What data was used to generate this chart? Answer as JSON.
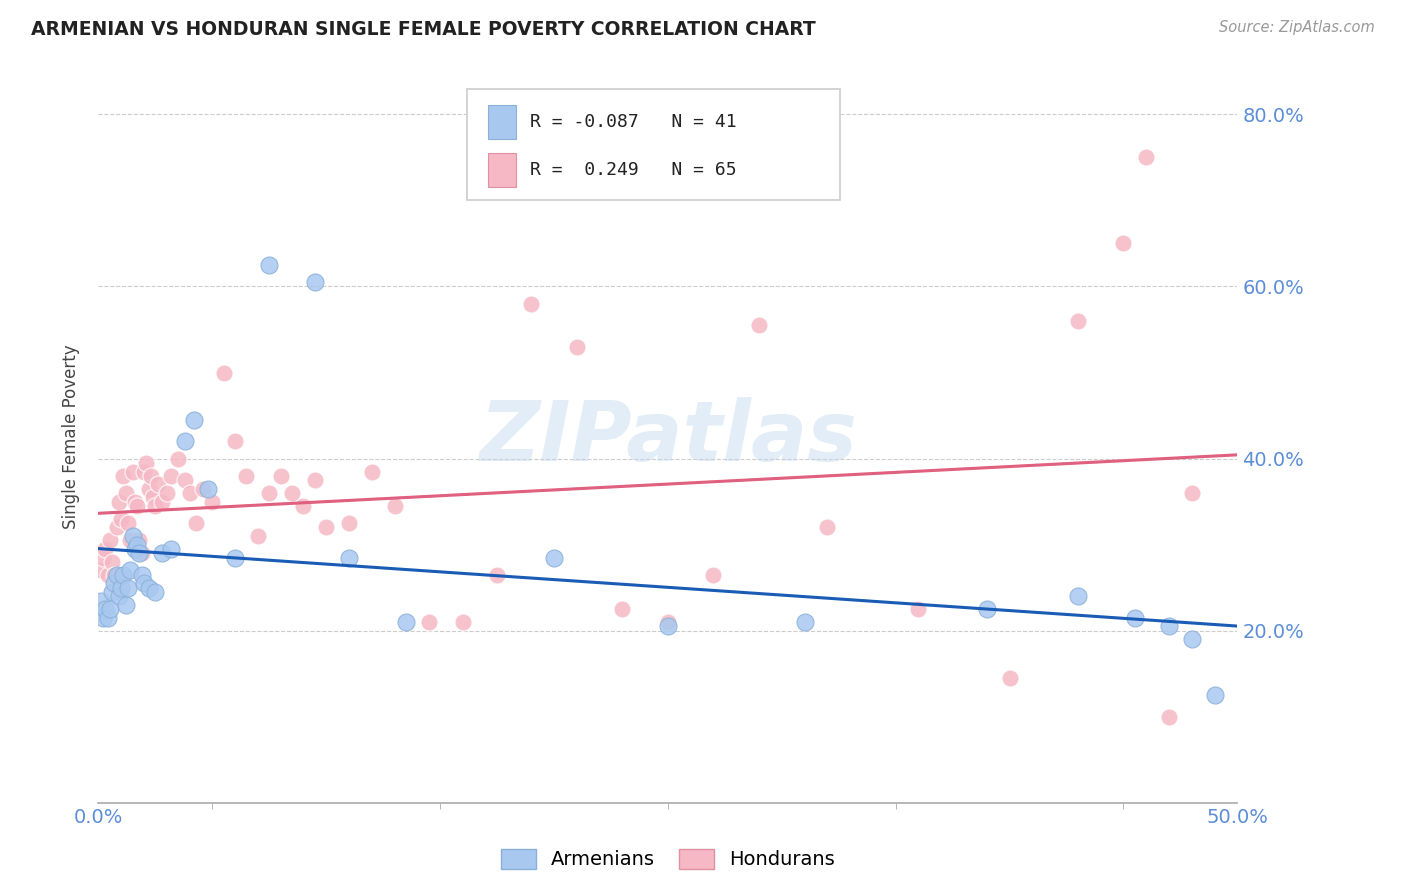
{
  "title": "ARMENIAN VS HONDURAN SINGLE FEMALE POVERTY CORRELATION CHART",
  "source": "Source: ZipAtlas.com",
  "ylabel": "Single Female Poverty",
  "xlim": [
    0.0,
    0.5
  ],
  "ylim": [
    0.0,
    0.85
  ],
  "armenian_color": "#a8c8f0",
  "honduran_color": "#f5b8c4",
  "trendline_armenian_color": "#1a5cb5",
  "trendline_honduran_color": "#e06080",
  "watermark": "ZIPatlas",
  "legend_r_armenian": "-0.087",
  "legend_n_armenian": "41",
  "legend_r_honduran": " 0.249",
  "legend_n_honduran": "65",
  "armenian_x": [
    0.001,
    0.002,
    0.003,
    0.004,
    0.005,
    0.006,
    0.007,
    0.008,
    0.009,
    0.01,
    0.011,
    0.012,
    0.013,
    0.014,
    0.015,
    0.016,
    0.017,
    0.018,
    0.019,
    0.02,
    0.022,
    0.025,
    0.028,
    0.032,
    0.038,
    0.042,
    0.048,
    0.06,
    0.075,
    0.095,
    0.11,
    0.135,
    0.2,
    0.25,
    0.31,
    0.39,
    0.43,
    0.455,
    0.47,
    0.48,
    0.49
  ],
  "armenian_y": [
    0.235,
    0.215,
    0.225,
    0.215,
    0.225,
    0.245,
    0.255,
    0.265,
    0.24,
    0.25,
    0.265,
    0.23,
    0.25,
    0.27,
    0.31,
    0.295,
    0.3,
    0.29,
    0.265,
    0.255,
    0.25,
    0.245,
    0.29,
    0.295,
    0.42,
    0.445,
    0.365,
    0.285,
    0.625,
    0.605,
    0.285,
    0.21,
    0.285,
    0.205,
    0.21,
    0.225,
    0.24,
    0.215,
    0.205,
    0.19,
    0.125
  ],
  "honduran_x": [
    0.001,
    0.002,
    0.003,
    0.004,
    0.005,
    0.006,
    0.007,
    0.008,
    0.009,
    0.01,
    0.011,
    0.012,
    0.013,
    0.014,
    0.015,
    0.016,
    0.017,
    0.018,
    0.019,
    0.02,
    0.021,
    0.022,
    0.023,
    0.024,
    0.025,
    0.026,
    0.028,
    0.03,
    0.032,
    0.035,
    0.038,
    0.04,
    0.043,
    0.046,
    0.05,
    0.055,
    0.06,
    0.065,
    0.07,
    0.075,
    0.08,
    0.085,
    0.09,
    0.095,
    0.1,
    0.11,
    0.12,
    0.13,
    0.145,
    0.16,
    0.175,
    0.19,
    0.21,
    0.23,
    0.25,
    0.27,
    0.29,
    0.32,
    0.36,
    0.4,
    0.43,
    0.45,
    0.46,
    0.47,
    0.48
  ],
  "honduran_y": [
    0.27,
    0.285,
    0.295,
    0.265,
    0.305,
    0.28,
    0.265,
    0.32,
    0.35,
    0.33,
    0.38,
    0.36,
    0.325,
    0.305,
    0.385,
    0.35,
    0.345,
    0.305,
    0.29,
    0.385,
    0.395,
    0.365,
    0.38,
    0.355,
    0.345,
    0.37,
    0.35,
    0.36,
    0.38,
    0.4,
    0.375,
    0.36,
    0.325,
    0.365,
    0.35,
    0.5,
    0.42,
    0.38,
    0.31,
    0.36,
    0.38,
    0.36,
    0.345,
    0.375,
    0.32,
    0.325,
    0.385,
    0.345,
    0.21,
    0.21,
    0.265,
    0.58,
    0.53,
    0.225,
    0.21,
    0.265,
    0.555,
    0.32,
    0.225,
    0.145,
    0.56,
    0.65,
    0.75,
    0.1,
    0.36
  ]
}
